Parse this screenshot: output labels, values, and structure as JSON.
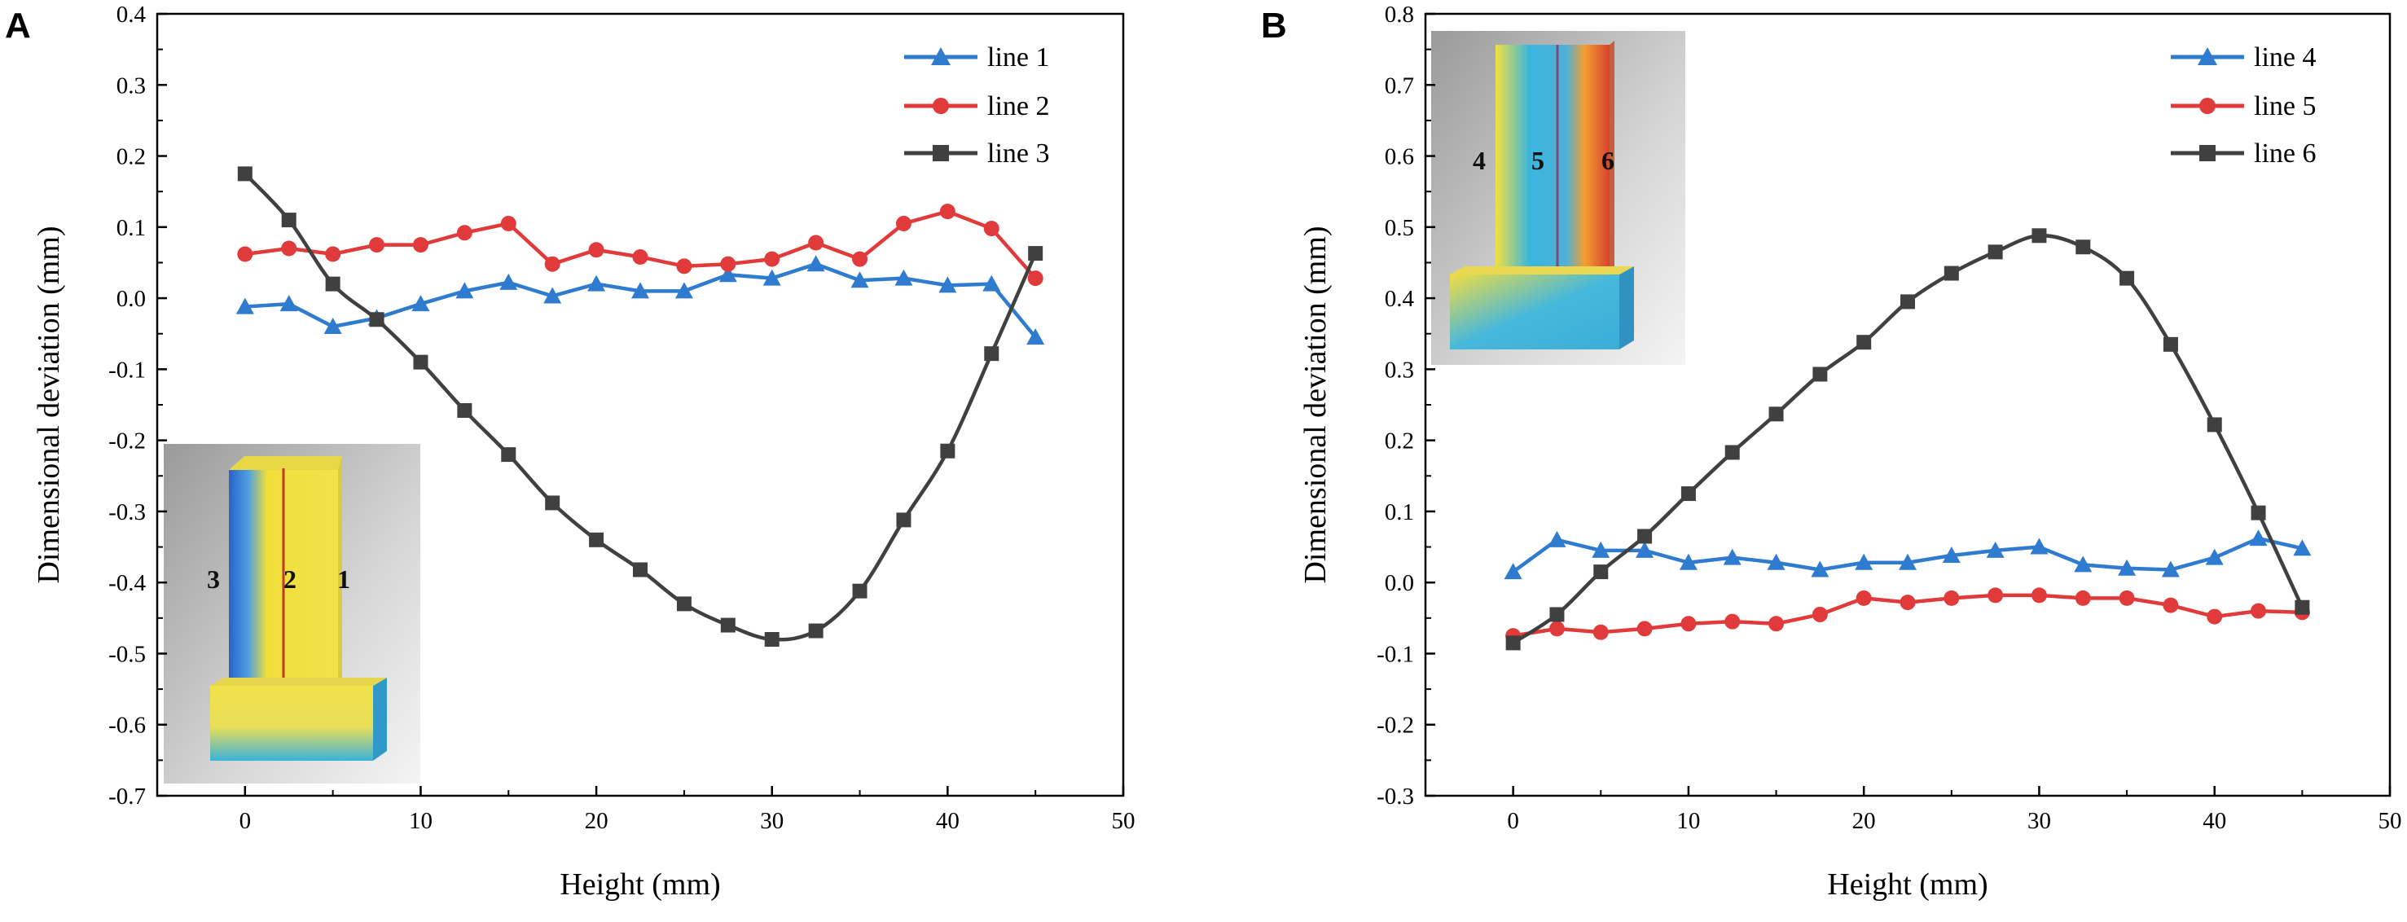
{
  "chart_data": [
    {
      "panel": "A",
      "type": "line",
      "xlabel": "Height (mm)",
      "ylabel": "Dimensional deviation (mm)",
      "xlim": [
        -5,
        50
      ],
      "ylim": [
        -0.7,
        0.4
      ],
      "xticks": [
        0,
        10,
        20,
        30,
        40,
        50
      ],
      "yticks": [
        -0.7,
        -0.6,
        -0.5,
        -0.4,
        -0.3,
        -0.2,
        -0.1,
        0.0,
        0.1,
        0.2,
        0.3,
        0.4
      ],
      "legend_position": "top-right",
      "x": [
        0,
        2.5,
        5,
        7.5,
        10,
        12.5,
        15,
        17.5,
        20,
        22.5,
        25,
        27.5,
        30,
        32.5,
        35,
        37.5,
        40,
        42.5,
        45
      ],
      "series": [
        {
          "name": "line 1",
          "color": "#2f7bcf",
          "marker": "triangle",
          "values": [
            -0.012,
            -0.008,
            -0.04,
            -0.028,
            -0.008,
            0.01,
            0.022,
            0.003,
            0.02,
            0.01,
            0.01,
            0.033,
            0.028,
            0.048,
            0.025,
            0.028,
            0.018,
            0.02,
            -0.055
          ]
        },
        {
          "name": "line 2",
          "color": "#e03a3a",
          "marker": "circle",
          "values": [
            0.062,
            0.07,
            0.062,
            0.075,
            0.075,
            0.092,
            0.105,
            0.048,
            0.068,
            0.058,
            0.045,
            0.048,
            0.055,
            0.078,
            0.055,
            0.105,
            0.122,
            0.098,
            0.028
          ]
        },
        {
          "name": "line 3",
          "color": "#404040",
          "marker": "square",
          "values": [
            0.175,
            0.11,
            0.02,
            -0.03,
            -0.09,
            -0.158,
            -0.22,
            -0.288,
            -0.34,
            -0.382,
            -0.43,
            -0.46,
            -0.48,
            -0.468,
            -0.412,
            -0.312,
            -0.215,
            -0.078,
            0.063
          ]
        }
      ],
      "inset_labels": [
        "3",
        "2",
        "1"
      ]
    },
    {
      "panel": "B",
      "type": "line",
      "xlabel": "Height (mm)",
      "ylabel": "Dimensional deviation (mm)",
      "xlim": [
        -5,
        50
      ],
      "ylim": [
        -0.3,
        0.8
      ],
      "xticks": [
        0,
        10,
        20,
        30,
        40,
        50
      ],
      "yticks": [
        -0.3,
        -0.2,
        -0.1,
        0.0,
        0.1,
        0.2,
        0.3,
        0.4,
        0.5,
        0.6,
        0.7,
        0.8
      ],
      "legend_position": "top-right",
      "x": [
        0,
        2.5,
        5,
        7.5,
        10,
        12.5,
        15,
        17.5,
        20,
        22.5,
        25,
        27.5,
        30,
        32.5,
        35,
        37.5,
        40,
        42.5,
        45
      ],
      "series": [
        {
          "name": "line 4",
          "color": "#2f7bcf",
          "marker": "triangle",
          "values": [
            0.015,
            0.06,
            0.045,
            0.045,
            0.028,
            0.035,
            0.028,
            0.018,
            0.028,
            0.028,
            0.038,
            0.045,
            0.05,
            0.025,
            0.02,
            0.018,
            0.035,
            0.062,
            0.048
          ]
        },
        {
          "name": "line 5",
          "color": "#e03a3a",
          "marker": "circle",
          "values": [
            -0.075,
            -0.065,
            -0.07,
            -0.065,
            -0.058,
            -0.055,
            -0.058,
            -0.045,
            -0.022,
            -0.028,
            -0.022,
            -0.018,
            -0.018,
            -0.022,
            -0.022,
            -0.032,
            -0.048,
            -0.04,
            -0.042
          ]
        },
        {
          "name": "line 6",
          "color": "#404040",
          "marker": "square",
          "values": [
            -0.085,
            -0.045,
            0.015,
            0.065,
            0.125,
            0.183,
            0.237,
            0.293,
            0.338,
            0.395,
            0.435,
            0.465,
            0.488,
            0.472,
            0.428,
            0.335,
            0.222,
            0.098,
            -0.035
          ]
        }
      ],
      "inset_labels": [
        "4",
        "5",
        "6"
      ]
    }
  ]
}
